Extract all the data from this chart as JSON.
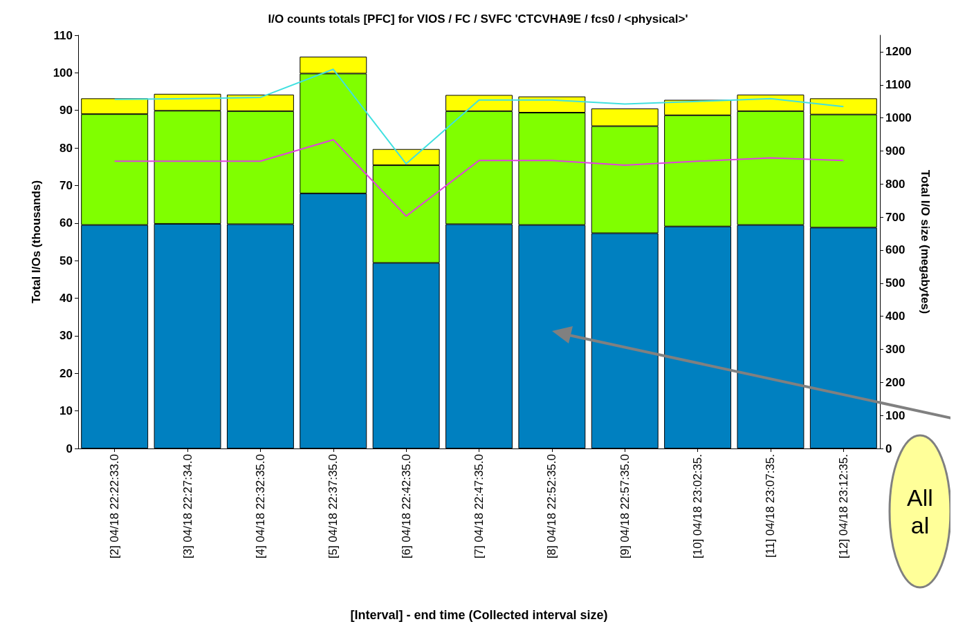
{
  "chart_data": {
    "type": "bar",
    "title": "I/O counts totals [PFC] for VIOS / FC / SVFC 'CTCVHA9E / fcs0 / <physical>'",
    "xlabel": "[Interval] - end time (Collected interval size)",
    "ylabel": "Total I/Os (thousands)",
    "y2label": "Total I/O size (megabytes)",
    "categories": [
      "[2] 04/18 22:22:33.0",
      "[3] 04/18 22:27:34.0",
      "[4] 04/18 22:32:35.0",
      "[5] 04/18 22:37:35.0",
      "[6] 04/18 22:42:35.0",
      "[7] 04/18 22:47:35.0",
      "[8] 04/18 22:52:35.0",
      "[9] 04/18 22:57:35.0",
      "[10] 04/18 23:02:35.",
      "[11] 04/18 23:07:35.",
      "[12] 04/18 23:12:35."
    ],
    "stacked": true,
    "grid": false,
    "marker": "none",
    "line_style": "solid",
    "ylim": [
      0,
      110
    ],
    "yticks": [
      0,
      10,
      20,
      30,
      40,
      50,
      60,
      70,
      80,
      90,
      100,
      110
    ],
    "y2lim": [
      0,
      1250
    ],
    "y2ticks": [
      0,
      100,
      200,
      300,
      400,
      500,
      600,
      700,
      800,
      900,
      1000,
      1100,
      1200
    ],
    "series": [
      {
        "color": "#0080c0",
        "values": [
          59.5,
          59.8,
          59.7,
          67.9,
          49.4,
          59.7,
          59.5,
          57.3,
          59.1,
          59.5,
          58.8
        ]
      },
      {
        "color": "#80ff00",
        "values": [
          29.5,
          30.1,
          30.1,
          31.9,
          26.0,
          30.1,
          29.9,
          28.5,
          29.6,
          30.3,
          30.1
        ]
      },
      {
        "color": "#ffff00",
        "values": [
          4.2,
          4.5,
          4.4,
          4.5,
          4.3,
          4.3,
          4.3,
          4.7,
          4.1,
          4.4,
          4.3
        ]
      },
      {
        "type": "line",
        "axis": "y2",
        "color": "#40e0e0",
        "values": [
          1056,
          1058,
          1062,
          1147,
          861,
          1054,
          1054,
          1042,
          1050,
          1058,
          1034
        ]
      },
      {
        "type": "line",
        "axis": "y2",
        "color": "#e040e0",
        "values": [
          869,
          869,
          869,
          934,
          703,
          871,
          871,
          857,
          869,
          879,
          871
        ]
      }
    ],
    "annotations": [
      "All al"
    ]
  }
}
